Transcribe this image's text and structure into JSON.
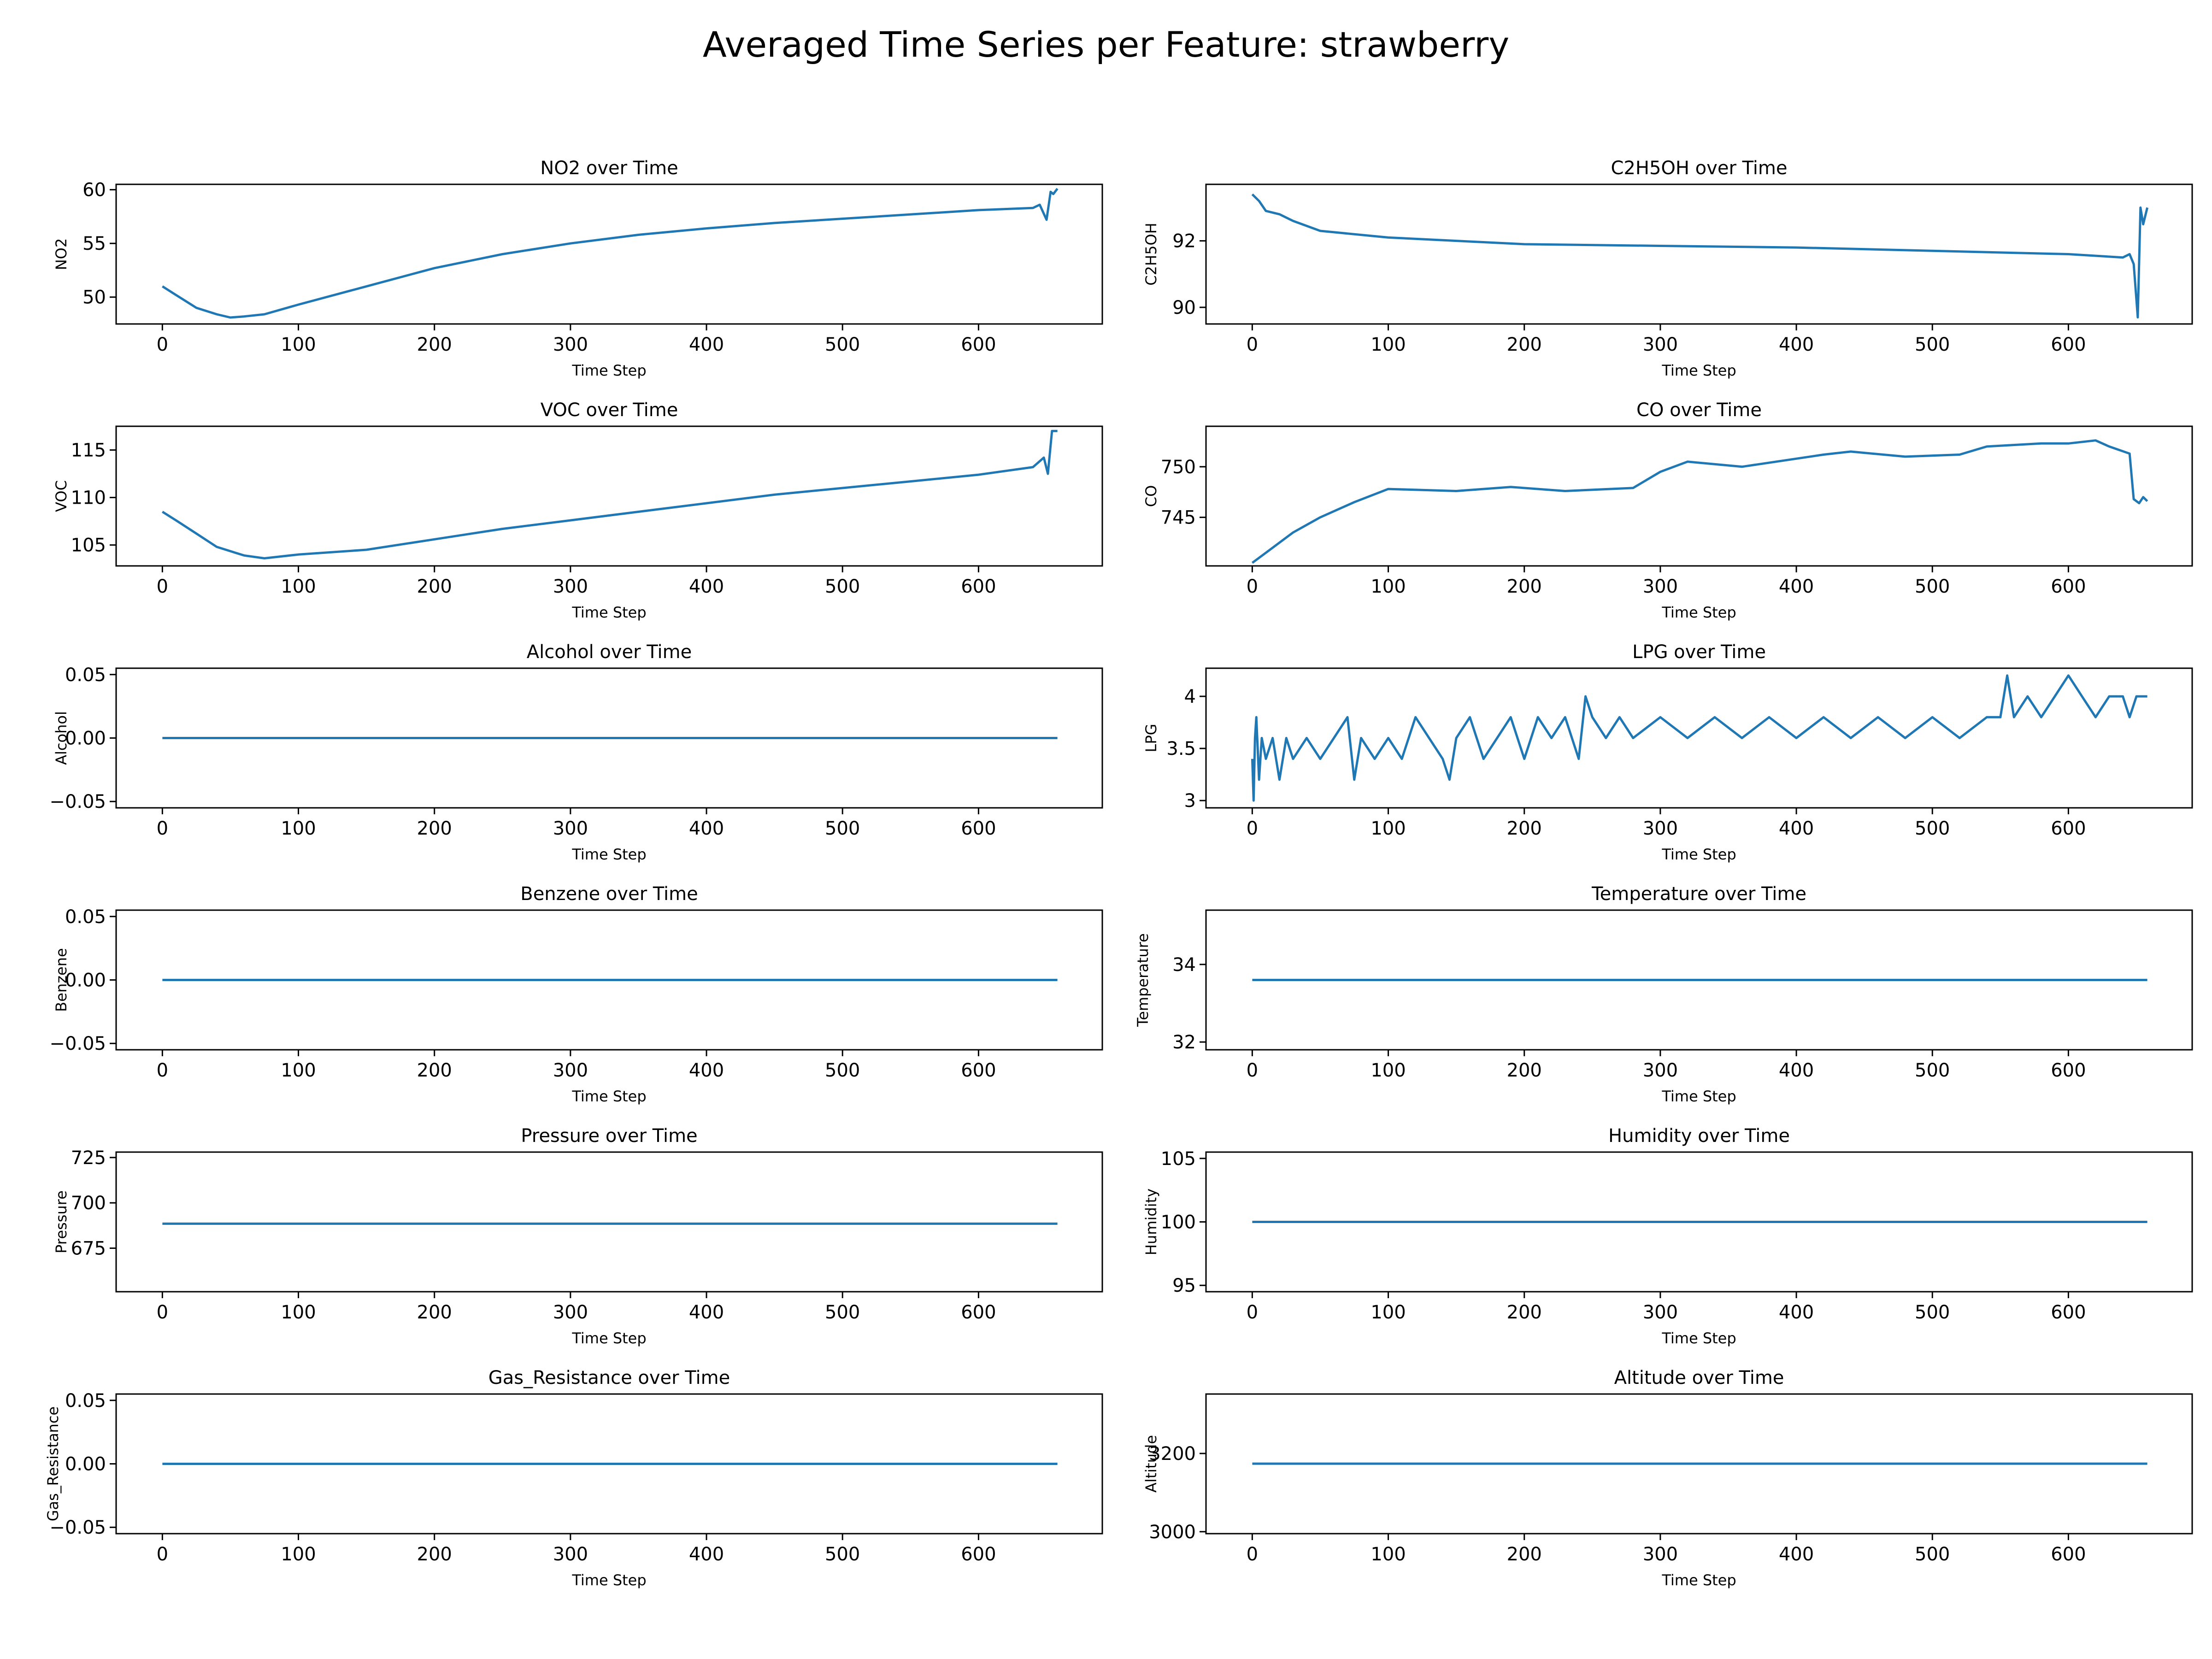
{
  "figure_title": "Averaged Time Series per Feature: strawberry",
  "line_color": "#1f77b4",
  "chart_data": [
    {
      "type": "line",
      "title": "NO2 over Time",
      "xlabel": "Time Step",
      "ylabel": "NO2",
      "xlim": [
        -34,
        691
      ],
      "ylim": [
        47.5,
        60.5
      ],
      "xticks": [
        0,
        100,
        200,
        300,
        400,
        500,
        600
      ],
      "yticks": [
        50,
        55,
        60
      ],
      "x": [
        0,
        10,
        25,
        40,
        50,
        60,
        75,
        100,
        150,
        200,
        250,
        300,
        350,
        400,
        450,
        500,
        550,
        600,
        640,
        645,
        650,
        653,
        655,
        658
      ],
      "y": [
        51,
        50.2,
        49.0,
        48.4,
        48.1,
        48.2,
        48.4,
        49.3,
        51.0,
        52.7,
        54.0,
        55.0,
        55.8,
        56.4,
        56.9,
        57.3,
        57.7,
        58.1,
        58.3,
        58.6,
        57.2,
        59.8,
        59.6,
        60.1
      ]
    },
    {
      "type": "line",
      "title": "C2H5OH over Time",
      "xlabel": "Time Step",
      "ylabel": "C2H5OH",
      "xlim": [
        -34,
        691
      ],
      "ylim": [
        89.5,
        93.7
      ],
      "xticks": [
        0,
        100,
        200,
        300,
        400,
        500,
        600
      ],
      "yticks": [
        90,
        92
      ],
      "x": [
        0,
        5,
        10,
        20,
        30,
        50,
        100,
        150,
        200,
        300,
        400,
        500,
        600,
        640,
        645,
        648,
        651,
        653,
        655,
        658
      ],
      "y": [
        93.4,
        93.2,
        92.9,
        92.8,
        92.6,
        92.3,
        92.1,
        92.0,
        91.9,
        91.85,
        91.8,
        91.7,
        91.6,
        91.5,
        91.6,
        91.3,
        89.7,
        93.0,
        92.5,
        93.0
      ]
    },
    {
      "type": "line",
      "title": "VOC over Time",
      "xlabel": "Time Step",
      "ylabel": "VOC",
      "xlim": [
        -34,
        691
      ],
      "ylim": [
        102.8,
        117.5
      ],
      "xticks": [
        0,
        100,
        200,
        300,
        400,
        500,
        600
      ],
      "yticks": [
        105,
        110,
        115
      ],
      "x": [
        0,
        10,
        25,
        40,
        60,
        75,
        100,
        150,
        200,
        250,
        300,
        350,
        400,
        450,
        500,
        550,
        600,
        640,
        648,
        651,
        654,
        658
      ],
      "y": [
        108.5,
        107.6,
        106.2,
        104.8,
        103.9,
        103.6,
        104.0,
        104.5,
        105.6,
        106.7,
        107.6,
        108.5,
        109.4,
        110.3,
        111.0,
        111.7,
        112.4,
        113.2,
        114.2,
        112.5,
        117.0,
        117.0
      ]
    },
    {
      "type": "line",
      "title": "CO over Time",
      "xlabel": "Time Step",
      "ylabel": "CO",
      "xlim": [
        -34,
        691
      ],
      "ylim": [
        740.2,
        754.0
      ],
      "xticks": [
        0,
        100,
        200,
        300,
        400,
        500,
        600
      ],
      "yticks": [
        745,
        750
      ],
      "x": [
        0,
        10,
        30,
        50,
        75,
        100,
        150,
        190,
        230,
        280,
        300,
        320,
        360,
        400,
        420,
        440,
        480,
        520,
        540,
        580,
        600,
        620,
        630,
        645,
        648,
        652,
        655,
        658
      ],
      "y": [
        740.5,
        741.5,
        743.5,
        745.0,
        746.5,
        747.8,
        747.6,
        748.0,
        747.6,
        747.9,
        749.5,
        750.5,
        750.0,
        750.8,
        751.2,
        751.5,
        751.0,
        751.2,
        752.0,
        752.3,
        752.3,
        752.6,
        752.0,
        751.3,
        746.8,
        746.4,
        747.0,
        746.6
      ]
    },
    {
      "type": "line",
      "title": "Alcohol over Time",
      "xlabel": "Time Step",
      "ylabel": "Alcohol",
      "xlim": [
        -34,
        691
      ],
      "ylim": [
        -0.055,
        0.055
      ],
      "xticks": [
        0,
        100,
        200,
        300,
        400,
        500,
        600
      ],
      "yticks": [
        -0.05,
        0.0,
        0.05
      ],
      "ytick_labels": [
        "−0.05",
        "0.00",
        "0.05"
      ],
      "x": [
        0,
        658
      ],
      "y": [
        0,
        0
      ]
    },
    {
      "type": "line",
      "title": "LPG over Time",
      "xlabel": "Time Step",
      "ylabel": "LPG",
      "xlim": [
        -34,
        691
      ],
      "ylim": [
        2.93,
        4.27
      ],
      "xticks": [
        0,
        100,
        200,
        300,
        400,
        500,
        600
      ],
      "yticks": [
        3.0,
        3.5,
        4.0
      ],
      "x": [
        0,
        1,
        2,
        3,
        5,
        7,
        10,
        15,
        20,
        25,
        30,
        40,
        50,
        60,
        70,
        75,
        80,
        90,
        100,
        110,
        120,
        130,
        140,
        145,
        150,
        160,
        170,
        180,
        190,
        200,
        210,
        220,
        230,
        240,
        245,
        250,
        260,
        270,
        280,
        300,
        320,
        340,
        360,
        380,
        400,
        420,
        440,
        460,
        480,
        500,
        520,
        540,
        550,
        555,
        560,
        570,
        580,
        590,
        600,
        610,
        620,
        630,
        640,
        645,
        650,
        658
      ],
      "y": [
        3.4,
        3.0,
        3.6,
        3.8,
        3.2,
        3.6,
        3.4,
        3.6,
        3.2,
        3.6,
        3.4,
        3.6,
        3.4,
        3.6,
        3.8,
        3.2,
        3.6,
        3.4,
        3.6,
        3.4,
        3.8,
        3.6,
        3.4,
        3.2,
        3.6,
        3.8,
        3.4,
        3.6,
        3.8,
        3.4,
        3.8,
        3.6,
        3.8,
        3.4,
        4.0,
        3.8,
        3.6,
        3.8,
        3.6,
        3.8,
        3.6,
        3.8,
        3.6,
        3.8,
        3.6,
        3.8,
        3.6,
        3.8,
        3.6,
        3.8,
        3.6,
        3.8,
        3.8,
        4.2,
        3.8,
        4.0,
        3.8,
        4.0,
        4.2,
        4.0,
        3.8,
        4.0,
        4.0,
        3.8,
        4.0,
        4.0
      ]
    },
    {
      "type": "line",
      "title": "Benzene over Time",
      "xlabel": "Time Step",
      "ylabel": "Benzene",
      "xlim": [
        -34,
        691
      ],
      "ylim": [
        -0.055,
        0.055
      ],
      "xticks": [
        0,
        100,
        200,
        300,
        400,
        500,
        600
      ],
      "yticks": [
        -0.05,
        0.0,
        0.05
      ],
      "ytick_labels": [
        "−0.05",
        "0.00",
        "0.05"
      ],
      "x": [
        0,
        658
      ],
      "y": [
        0,
        0
      ]
    },
    {
      "type": "line",
      "title": "Temperature over Time",
      "xlabel": "Time Step",
      "ylabel": "Temperature",
      "xlim": [
        -34,
        691
      ],
      "ylim": [
        31.8,
        35.4
      ],
      "xticks": [
        0,
        100,
        200,
        300,
        400,
        500,
        600
      ],
      "yticks": [
        32,
        34
      ],
      "x": [
        0,
        658
      ],
      "y": [
        33.6,
        33.6
      ]
    },
    {
      "type": "line",
      "title": "Pressure over Time",
      "xlabel": "Time Step",
      "ylabel": "Pressure",
      "xlim": [
        -34,
        691
      ],
      "ylim": [
        651,
        728
      ],
      "xticks": [
        0,
        100,
        200,
        300,
        400,
        500,
        600
      ],
      "yticks": [
        675,
        700,
        725
      ],
      "x": [
        0,
        658
      ],
      "y": [
        688.5,
        688.5
      ]
    },
    {
      "type": "line",
      "title": "Humidity over Time",
      "xlabel": "Time Step",
      "ylabel": "Humidity",
      "xlim": [
        -34,
        691
      ],
      "ylim": [
        94.5,
        105.5
      ],
      "xticks": [
        0,
        100,
        200,
        300,
        400,
        500,
        600
      ],
      "yticks": [
        95,
        100,
        105
      ],
      "x": [
        0,
        658
      ],
      "y": [
        100,
        100
      ]
    },
    {
      "type": "line",
      "title": "Gas_Resistance over Time",
      "xlabel": "Time Step",
      "ylabel": "Gas_Resistance",
      "xlim": [
        -34,
        691
      ],
      "ylim": [
        -0.055,
        0.055
      ],
      "xticks": [
        0,
        100,
        200,
        300,
        400,
        500,
        600
      ],
      "yticks": [
        -0.05,
        0.0,
        0.05
      ],
      "ytick_labels": [
        "−0.05",
        "0.00",
        "0.05"
      ],
      "x": [
        0,
        658
      ],
      "y": [
        0,
        0
      ]
    },
    {
      "type": "line",
      "title": "Altitude over Time",
      "xlabel": "Time Step",
      "ylabel": "Altitude",
      "xlim": [
        -34,
        691
      ],
      "ylim": [
        2995,
        3352
      ],
      "xticks": [
        0,
        100,
        200,
        300,
        400,
        500,
        600
      ],
      "yticks": [
        3000,
        3200
      ],
      "x": [
        0,
        658
      ],
      "y": [
        3174,
        3174
      ]
    }
  ]
}
